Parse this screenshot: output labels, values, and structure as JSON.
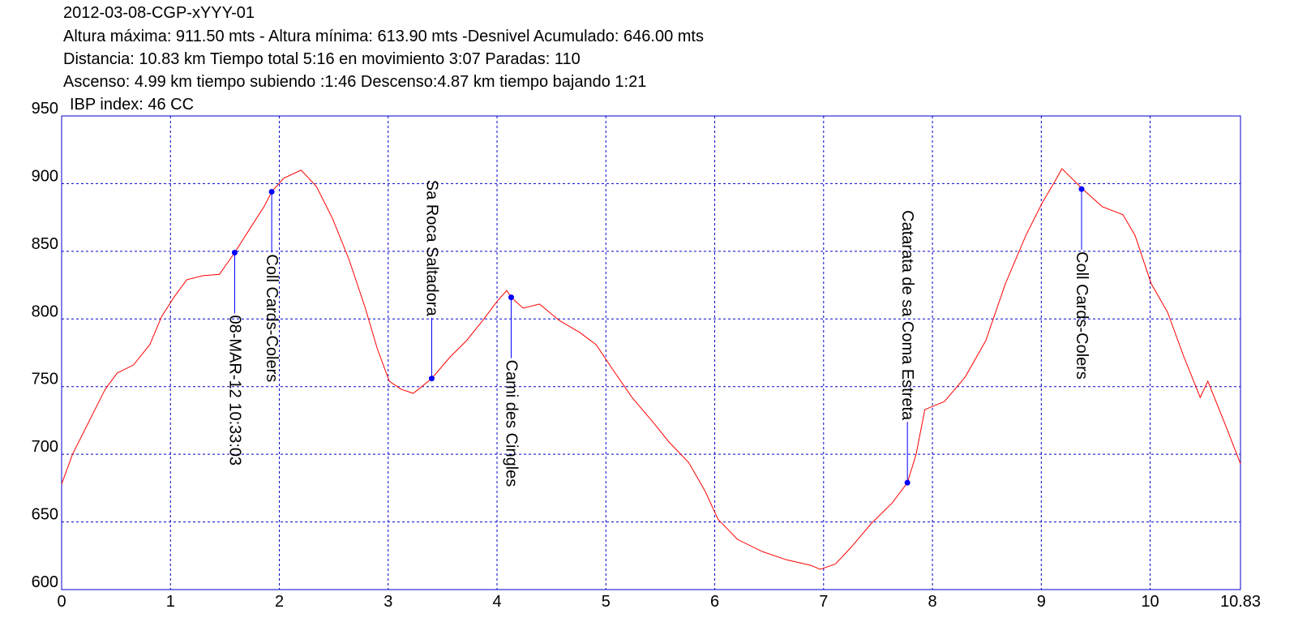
{
  "chart_data": {
    "type": "line",
    "title": "2012-03-08-CGP-xYYY-01",
    "annotations": [
      "Altura máxima: 911.50 mts - Altura mínima: 613.90 mts -Desnivel Acumulado: 646.00 mts",
      "Distancia: 10.83 km  Tiempo total 5:16  en movimiento 3:07 Paradas: 110",
      "Ascenso: 4.99 km  tiempo subiendo :1:46  Descenso:4.87 km tiempo bajando 1:21",
      "IBP index: 46 CC"
    ],
    "x": [
      0,
      0.1,
      0.25,
      0.4,
      0.51,
      0.66,
      0.81,
      0.92,
      1.04,
      1.15,
      1.3,
      1.45,
      1.52,
      1.59,
      1.74,
      1.86,
      1.93,
      2.04,
      2.2,
      2.34,
      2.49,
      2.64,
      2.79,
      2.9,
      3.01,
      3.12,
      3.23,
      3.4,
      3.57,
      3.72,
      3.87,
      4.01,
      4.09,
      4.13,
      4.24,
      4.39,
      4.57,
      4.76,
      4.91,
      5.06,
      5.24,
      5.43,
      5.58,
      5.76,
      5.91,
      6.03,
      6.21,
      6.44,
      6.66,
      6.88,
      6.97,
      7.11,
      7.25,
      7.44,
      7.63,
      7.77,
      7.85,
      7.93,
      8.11,
      8.3,
      8.49,
      8.67,
      8.86,
      9.01,
      9.12,
      9.19,
      9.38,
      9.56,
      9.75,
      9.86,
      10.01,
      10.16,
      10.31,
      10.46,
      10.53,
      10.68,
      10.83
    ],
    "values": [
      678,
      700,
      724,
      748,
      760,
      766,
      781,
      802,
      817,
      829,
      832,
      833,
      841,
      849,
      868,
      883,
      894,
      904,
      910,
      898,
      874,
      844,
      808,
      778,
      754,
      748,
      745,
      756,
      772,
      784,
      799,
      814,
      821,
      816,
      808,
      811,
      799,
      790,
      781,
      763,
      742,
      724,
      709,
      694,
      673,
      652,
      637,
      628,
      622,
      618,
      615,
      619,
      631,
      649,
      664,
      679,
      700,
      733,
      739,
      757,
      784,
      826,
      862,
      886,
      901,
      911,
      896,
      883,
      877,
      862,
      826,
      805,
      772,
      742,
      754,
      724,
      693
    ],
    "color": "#ff0000",
    "waypoints": [
      {
        "label": "08-MAR-12 10:33:03",
        "x": 1.59,
        "y": 849
      },
      {
        "label": "Coll Cards-Colers",
        "x": 1.93,
        "y": 894
      },
      {
        "label": "Sa Roca Saltadora",
        "x": 3.4,
        "y": 756
      },
      {
        "label": "Cami des Cingles",
        "x": 4.13,
        "y": 816
      },
      {
        "label": "Catarata de sa Coma Estreta",
        "x": 7.77,
        "y": 679
      },
      {
        "label": "Coll Cards-Colers",
        "x": 9.37,
        "y": 896
      }
    ],
    "waypoint_color": "#0000ff",
    "xlim": [
      0,
      10.83
    ],
    "xticks": [
      0,
      1,
      2,
      3,
      4,
      5,
      6,
      7,
      8,
      9,
      10,
      10.83
    ],
    "ylim": [
      600,
      950
    ],
    "yticks": [
      600,
      650,
      700,
      750,
      800,
      850,
      900,
      950
    ],
    "grid": true
  }
}
